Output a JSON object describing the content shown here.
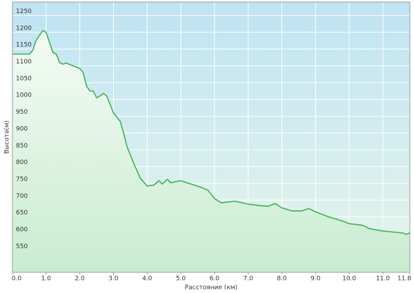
{
  "chart_data": {
    "type": "area",
    "x_label": "Расстояние (км)",
    "y_label": "Высота(м)",
    "x": [
      0,
      0.5,
      0.6,
      0.7,
      0.8,
      0.9,
      1.0,
      1.1,
      1.2,
      1.3,
      1.4,
      1.5,
      1.6,
      1.8,
      2.0,
      2.1,
      2.2,
      2.3,
      2.4,
      2.5,
      2.6,
      2.7,
      2.8,
      2.9,
      3.0,
      3.2,
      3.3,
      3.4,
      3.6,
      3.8,
      4.0,
      4.2,
      4.35,
      4.45,
      4.6,
      4.7,
      5.0,
      5.3,
      5.6,
      5.8,
      6.0,
      6.2,
      6.6,
      7.0,
      7.4,
      7.6,
      7.8,
      8.0,
      8.3,
      8.6,
      8.8,
      9.0,
      9.4,
      9.8,
      10.0,
      10.4,
      10.6,
      11.0,
      11.6,
      11.7,
      11.8
    ],
    "series": [
      {
        "color": "#3cb050",
        "values": [
          1135,
          1135,
          1145,
          1175,
          1190,
          1205,
          1200,
          1170,
          1140,
          1135,
          1110,
          1105,
          1108,
          1100,
          1092,
          1080,
          1040,
          1025,
          1025,
          1005,
          1010,
          1018,
          1010,
          985,
          960,
          935,
          900,
          860,
          810,
          765,
          742,
          745,
          758,
          748,
          762,
          752,
          758,
          748,
          738,
          730,
          705,
          692,
          697,
          688,
          683,
          682,
          690,
          677,
          668,
          668,
          675,
          665,
          650,
          638,
          630,
          625,
          615,
          608,
          602,
          598,
          603
        ]
      }
    ],
    "xlim": [
      0,
      11.8
    ],
    "ylim": [
      485,
      1290
    ],
    "xticks": [
      {
        "value": 0,
        "label": "0.0"
      },
      {
        "value": 1,
        "label": "1.0"
      },
      {
        "value": 2,
        "label": "2.0"
      },
      {
        "value": 3,
        "label": "3.0"
      },
      {
        "value": 4,
        "label": "4.0"
      },
      {
        "value": 5,
        "label": "5.0"
      },
      {
        "value": 6,
        "label": "6.0"
      },
      {
        "value": 7,
        "label": "7.0"
      },
      {
        "value": 8,
        "label": "8.0"
      },
      {
        "value": 9,
        "label": "9.0"
      },
      {
        "value": 10,
        "label": "10.0"
      },
      {
        "value": 11,
        "label": "11.0"
      },
      11.8
    ],
    "yticks": [
      550,
      600,
      650,
      700,
      750,
      800,
      850,
      900,
      950,
      1000,
      1050,
      1100,
      1150,
      1200,
      1250
    ],
    "grid": true
  }
}
